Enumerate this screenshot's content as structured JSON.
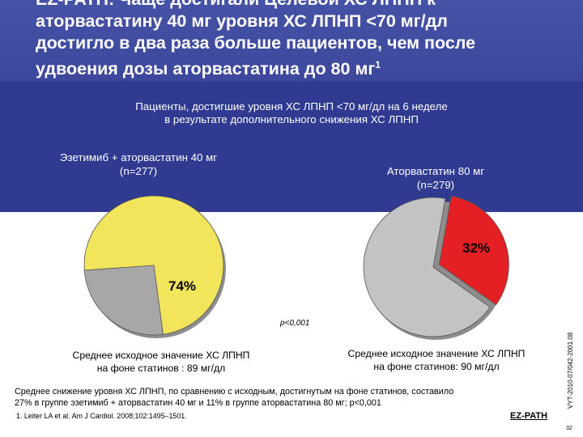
{
  "slide": {
    "title_lines": [
      "ЕZ-PATH: Чаще достигали Целевой ХС ЛПНП к",
      "аторвастатину 40 мг уровня ХС ЛПНП <70 мг/дл",
      "достигло в два раза больше пациентов, чем после",
      "удвоения дозы аторвастатина до 80 мг"
    ],
    "title_superscript": "1",
    "subtitle_lines": [
      "Пациенты, достигшие уровня ХС ЛПНП <70 мг/дл на 6 неделе",
      "в результате дополнительного снижения ХС ЛПНП"
    ],
    "group_left": {
      "name": "Эзетимиб + аторвастатин 40 мг",
      "n": "(n=277)"
    },
    "group_right": {
      "name": "Аторвастатин 80 мг",
      "n": "(n=279)"
    },
    "pvalue": "p<0,001",
    "baseline_left_lines": [
      "Среднее исходное значение ХС ЛПНП",
      "на фоне статинов : 89 мг/дл"
    ],
    "baseline_right_lines": [
      "Среднее исходное значение ХС ЛПНП",
      "на фоне статинов: 90 мг/дл"
    ],
    "summary_lines": [
      "Среднее снижение уровня ХС ЛПНП, по сравнению с исходным, достигнутым на фоне статинов, составило",
      "27% в группе эзетимиб + аторвастатин 40 мг и 11% в группе аторвастатина 80 мг; p<0,001"
    ],
    "reference": "1. Leiter LA et al. Am J Cardiol. 2008;102:1495–1501.",
    "brand": "EZ-PATH",
    "doc_code": "VYT-2010-07/042-2001.08",
    "page_number": "32"
  },
  "chart_data": [
    {
      "type": "pie",
      "title": "Эзетимиб + аторвастатин 40 мг",
      "slices": [
        {
          "label": "74%",
          "value": 74,
          "color": "#f2e55c"
        },
        {
          "label": "",
          "value": 26,
          "color": "#a7a7a7"
        }
      ]
    },
    {
      "type": "pie",
      "title": "Аторвастатин 80 мг",
      "slices": [
        {
          "label": "32%",
          "value": 32,
          "color": "#e42025"
        },
        {
          "label": "",
          "value": 68,
          "color": "#c3c3c3"
        }
      ]
    }
  ]
}
